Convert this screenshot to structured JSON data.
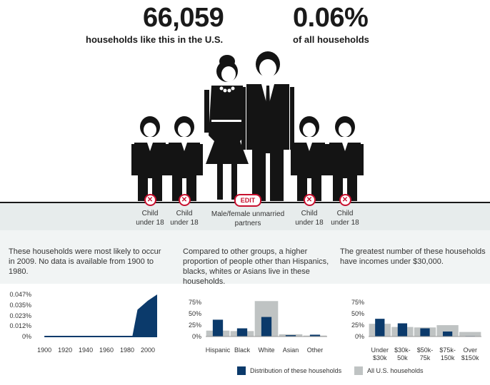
{
  "stats": {
    "count": "66,059",
    "count_label": "households like this in the U.S.",
    "share": "0.06%",
    "share_label": "of all households"
  },
  "members": [
    {
      "label": "Child\nunder 18",
      "control": "remove"
    },
    {
      "label": "Child\nunder 18",
      "control": "remove"
    },
    {
      "label": "Male/female unmarried\npartners",
      "control": "EDIT"
    },
    {
      "label": "Child\nunder 18",
      "control": "remove"
    },
    {
      "label": "Child\nunder 18",
      "control": "remove"
    }
  ],
  "edit_label": "EDIT",
  "remove_glyph": "✕",
  "descriptions": {
    "year": "These households were most likely to occur in 2009. No data is available from 1900 to 1980.",
    "race": "Compared to other groups, a higher proportion of people other than Hispanics, blacks, whites or Asians live in these households.",
    "income": "The greatest number of these households have incomes under $30,000."
  },
  "colors": {
    "navy": "#0b3a6b",
    "gray": "#bfc3c3",
    "figure": "#141414",
    "accent_red": "#c8102e"
  },
  "legend": {
    "these": "Distribution of these households",
    "all": "All U.S. households"
  },
  "chart_data": [
    {
      "type": "area",
      "x": [
        1900,
        1910,
        1920,
        1930,
        1940,
        1950,
        1960,
        1970,
        1980,
        1985,
        1990,
        2000,
        2009
      ],
      "series": [
        {
          "name": "Distribution of these households",
          "values": [
            0,
            0,
            0,
            0,
            0,
            0,
            0,
            0,
            0,
            0,
            0.03,
            0.04,
            0.047
          ]
        }
      ],
      "xticks": [
        "1900",
        "1920",
        "1940",
        "1960",
        "1980",
        "2000"
      ],
      "xtick_values": [
        1900,
        1920,
        1940,
        1960,
        1980,
        2000
      ],
      "yticks": [
        "0%",
        "0.012%",
        "0.023%",
        "0.035%",
        "0.047%"
      ],
      "ytick_values": [
        0,
        0.012,
        0.023,
        0.035,
        0.047
      ],
      "xlim": [
        1893,
        2009
      ],
      "ylim": [
        0,
        0.047
      ]
    },
    {
      "type": "bar",
      "categories": [
        "Hispanic",
        "Black",
        "White",
        "Asian",
        "Other"
      ],
      "category_labels": [
        [
          "Hispanic"
        ],
        [
          "Black"
        ],
        [
          "White"
        ],
        [
          "Asian"
        ],
        [
          "Other"
        ]
      ],
      "series": [
        {
          "name": "All U.S. households",
          "values": [
            13,
            12,
            78,
            5,
            2
          ]
        },
        {
          "name": "Distribution of these households",
          "values": [
            37,
            18,
            43,
            3,
            4
          ]
        }
      ],
      "yticks": [
        "0%",
        "25%",
        "50%",
        "75%"
      ],
      "ytick_values": [
        0,
        25,
        50,
        75
      ],
      "ylim": [
        0,
        80
      ]
    },
    {
      "type": "bar",
      "categories": [
        "Under $30k",
        "$30k-50k",
        "$50k-75k",
        "$75k-150k",
        "Over $150k"
      ],
      "category_labels": [
        [
          "Under",
          "$30k"
        ],
        [
          "$30k-",
          "50k"
        ],
        [
          "$50k-",
          "75k"
        ],
        [
          "$75k-",
          "150k"
        ],
        [
          "Over",
          "$150k"
        ]
      ],
      "series": [
        {
          "name": "All U.S. households",
          "values": [
            28,
            21,
            20,
            25,
            10
          ]
        },
        {
          "name": "Distribution of these households",
          "values": [
            39,
            29,
            18,
            11,
            1
          ]
        }
      ],
      "yticks": [
        "0%",
        "25%",
        "50%",
        "75%"
      ],
      "ytick_values": [
        0,
        25,
        50,
        75
      ],
      "ylim": [
        0,
        80
      ]
    }
  ]
}
